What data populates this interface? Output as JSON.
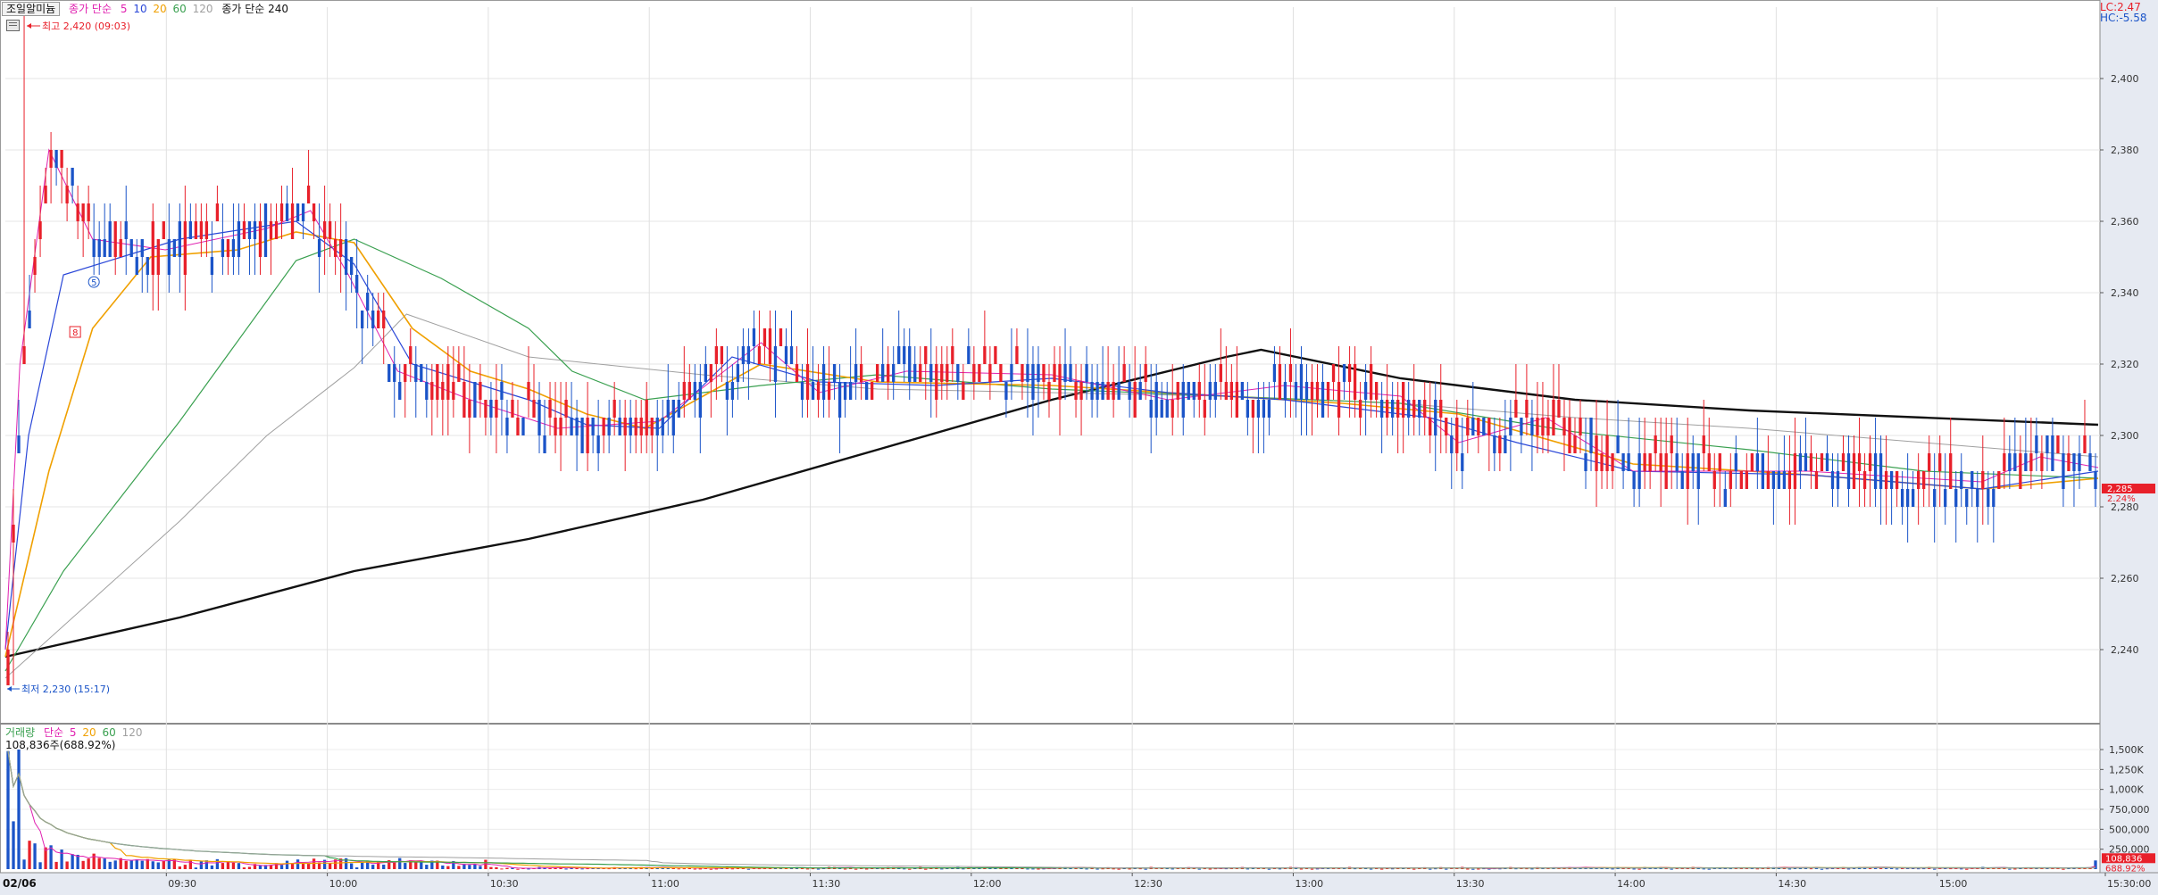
{
  "header": {
    "stock_tab": "조일알미늄",
    "price_ma_prefix": "종가 단순",
    "price_ma_periods": [
      "5",
      "10",
      "20",
      "60",
      "120"
    ],
    "price_ma_long_label": "종가 단순 240"
  },
  "volume_legend": {
    "label": "거래량",
    "ma_prefix": "단순",
    "periods": [
      "5",
      "20",
      "60",
      "120"
    ],
    "current_value": "108,836주(688.92%)"
  },
  "right_info": {
    "lc": "LC:2.47",
    "hc": "HC:-5.58"
  },
  "annotations": {
    "high": "최고 2,420 (09:03)",
    "low": "최저 2,230 (15:17)"
  },
  "price_badge": {
    "line1": "2,285",
    "line2": "2.24%"
  },
  "volume_badge": {
    "line1": "108,836",
    "line2": "688.92%"
  },
  "markers": {
    "ma5": "5",
    "ma8": "8"
  },
  "colors": {
    "up": "#e8202a",
    "down": "#1b54c8",
    "ma5": "#e020b0",
    "ma10": "#2a47d8",
    "ma20": "#f0a000",
    "ma60": "#3aa050",
    "ma120": "#a0a0a0",
    "ma240": "#111111"
  },
  "chart_data": {
    "type": "candlestick",
    "date": "02/06",
    "price_axis": {
      "ticks": [
        2240,
        2260,
        2280,
        2300,
        2320,
        2340,
        2360,
        2380,
        2400
      ]
    },
    "volume_axis": {
      "ticks": [
        "250,000",
        "500,000",
        "750,000",
        "1,000K",
        "1,250K",
        "1,500K"
      ]
    },
    "time_labels": [
      "09:30",
      "10:00",
      "10:30",
      "11:00",
      "11:30",
      "12:00",
      "12:30",
      "13:00",
      "13:30",
      "14:00",
      "14:30",
      "15:00",
      "15:30:00"
    ],
    "high": 2420,
    "low": 2230,
    "last": 2285,
    "change_percent": 2.24,
    "ma_lines": {
      "ma240": [
        [
          0,
          2238
        ],
        [
          60,
          2249
        ],
        [
          120,
          2262
        ],
        [
          180,
          2271
        ],
        [
          240,
          2282
        ],
        [
          300,
          2296
        ],
        [
          360,
          2310
        ],
        [
          420,
          2322
        ],
        [
          432,
          2324
        ],
        [
          480,
          2316
        ],
        [
          540,
          2310
        ],
        [
          600,
          2307
        ],
        [
          660,
          2305
        ],
        [
          720,
          2303
        ]
      ],
      "ma120": [
        [
          0,
          2232
        ],
        [
          30,
          2254
        ],
        [
          60,
          2276
        ],
        [
          90,
          2300
        ],
        [
          120,
          2319
        ],
        [
          138,
          2334
        ],
        [
          180,
          2322
        ],
        [
          240,
          2317
        ],
        [
          300,
          2313
        ],
        [
          360,
          2312
        ],
        [
          420,
          2311
        ],
        [
          480,
          2309
        ],
        [
          540,
          2305
        ],
        [
          600,
          2302
        ],
        [
          660,
          2298
        ],
        [
          720,
          2294
        ]
      ],
      "ma60": [
        [
          0,
          2234
        ],
        [
          20,
          2262
        ],
        [
          60,
          2304
        ],
        [
          100,
          2349
        ],
        [
          120,
          2355
        ],
        [
          150,
          2344
        ],
        [
          180,
          2330
        ],
        [
          195,
          2318
        ],
        [
          220,
          2310
        ],
        [
          260,
          2314
        ],
        [
          300,
          2317
        ],
        [
          360,
          2313
        ],
        [
          420,
          2311
        ],
        [
          480,
          2309
        ],
        [
          540,
          2301
        ],
        [
          600,
          2296
        ],
        [
          660,
          2290
        ],
        [
          720,
          2288
        ]
      ],
      "ma20": [
        [
          0,
          2238
        ],
        [
          15,
          2290
        ],
        [
          30,
          2330
        ],
        [
          50,
          2350
        ],
        [
          80,
          2352
        ],
        [
          100,
          2357
        ],
        [
          120,
          2354
        ],
        [
          140,
          2330
        ],
        [
          160,
          2318
        ],
        [
          180,
          2313
        ],
        [
          200,
          2306
        ],
        [
          220,
          2302
        ],
        [
          240,
          2311
        ],
        [
          260,
          2320
        ],
        [
          300,
          2315
        ],
        [
          360,
          2314
        ],
        [
          420,
          2311
        ],
        [
          460,
          2309
        ],
        [
          500,
          2306
        ],
        [
          560,
          2292
        ],
        [
          620,
          2289
        ],
        [
          680,
          2285
        ],
        [
          720,
          2288
        ]
      ],
      "ma10": [
        [
          0,
          2240
        ],
        [
          8,
          2300
        ],
        [
          20,
          2345
        ],
        [
          40,
          2350
        ],
        [
          60,
          2355
        ],
        [
          100,
          2360
        ],
        [
          120,
          2348
        ],
        [
          140,
          2320
        ],
        [
          160,
          2315
        ],
        [
          180,
          2310
        ],
        [
          200,
          2303
        ],
        [
          225,
          2302
        ],
        [
          250,
          2322
        ],
        [
          280,
          2315
        ],
        [
          320,
          2314
        ],
        [
          360,
          2316
        ],
        [
          400,
          2312
        ],
        [
          440,
          2310
        ],
        [
          490,
          2305
        ],
        [
          520,
          2298
        ],
        [
          560,
          2290
        ],
        [
          620,
          2289
        ],
        [
          680,
          2285
        ],
        [
          720,
          2290
        ]
      ],
      "ma5": [
        [
          0,
          2240
        ],
        [
          5,
          2320
        ],
        [
          15,
          2380
        ],
        [
          30,
          2355
        ],
        [
          55,
          2352
        ],
        [
          90,
          2358
        ],
        [
          105,
          2363
        ],
        [
          118,
          2345
        ],
        [
          135,
          2318
        ],
        [
          160,
          2310
        ],
        [
          190,
          2302
        ],
        [
          225,
          2304
        ],
        [
          260,
          2326
        ],
        [
          280,
          2312
        ],
        [
          310,
          2318
        ],
        [
          360,
          2317
        ],
        [
          400,
          2310
        ],
        [
          440,
          2314
        ],
        [
          480,
          2311
        ],
        [
          500,
          2298
        ],
        [
          530,
          2305
        ],
        [
          560,
          2290
        ],
        [
          620,
          2290
        ],
        [
          680,
          2287
        ],
        [
          700,
          2294
        ],
        [
          720,
          2291
        ]
      ]
    }
  }
}
